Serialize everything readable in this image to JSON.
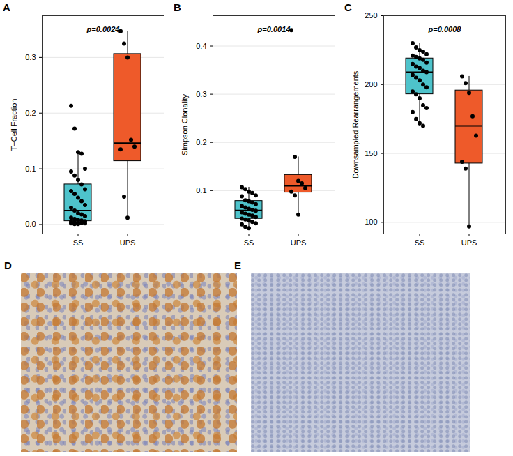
{
  "chart_data": [
    {
      "type": "box",
      "panel_label": "A",
      "annotation": "p=0.0024",
      "categories": [
        "SS",
        "UPS"
      ],
      "colors": [
        "#4ec3cb",
        "#ee5a2a"
      ],
      "ylabel": "T−Cell Fraction",
      "values": [
        [
          0.213,
          0.172,
          0.13,
          0.127,
          0.1,
          0.095,
          0.088,
          0.08,
          0.072,
          0.063,
          0.06,
          0.055,
          0.048,
          0.042,
          0.035,
          0.03,
          0.025,
          0.02,
          0.018,
          0.015,
          0.012,
          0.01,
          0.008,
          0.007,
          0.006,
          0.005,
          0.004,
          0.003,
          0.003,
          0.002,
          0.002,
          0.001,
          0.001
        ],
        [
          0.347,
          0.325,
          0.3,
          0.152,
          0.14,
          0.135,
          0.05,
          0.012
        ]
      ],
      "ylim": [
        -0.017,
        0.375
      ],
      "yticks": [
        {
          "value": 0,
          "label": "0.0"
        },
        0.1,
        0.2,
        0.3
      ],
      "grid": true
    },
    {
      "type": "box",
      "panel_label": "B",
      "annotation": "p=0.0014",
      "categories": [
        "SS",
        "UPS"
      ],
      "colors": [
        "#4ec3cb",
        "#ee5a2a"
      ],
      "ylabel": "Simpson Clonality",
      "values": [
        [
          0.107,
          0.103,
          0.098,
          0.095,
          0.09,
          0.088,
          0.08,
          0.078,
          0.075,
          0.072,
          0.068,
          0.065,
          0.062,
          0.06,
          0.058,
          0.055,
          0.052,
          0.05,
          0.048,
          0.045,
          0.042,
          0.04,
          0.038,
          0.035,
          0.032,
          0.03,
          0.025,
          0.022
        ],
        [
          0.433,
          0.17,
          0.12,
          0.115,
          0.105,
          0.098,
          0.09,
          0.05
        ]
      ],
      "ylim": [
        0.01,
        0.463
      ],
      "yticks": [
        0.1,
        0.2,
        0.3,
        0.4
      ],
      "grid": true
    },
    {
      "type": "box",
      "panel_label": "C",
      "annotation": "p=0.0008",
      "categories": [
        "SS",
        "UPS"
      ],
      "colors": [
        "#4ec3cb",
        "#ee5a2a"
      ],
      "ylabel": "Downsampled Rearrangements",
      "values": [
        [
          230,
          227,
          225,
          224,
          222,
          221,
          220,
          219,
          218,
          216,
          215,
          213,
          212,
          210,
          209,
          207,
          205,
          203,
          200,
          198,
          195,
          193,
          190,
          185,
          183,
          180,
          175,
          172,
          170
        ],
        [
          206,
          201,
          194,
          177,
          163,
          144,
          139,
          97
        ]
      ],
      "ylim": [
        91.6,
        250
      ],
      "yticks": [
        100,
        150,
        200,
        250
      ],
      "grid": true
    }
  ],
  "images": [
    {
      "panel_label": "D"
    },
    {
      "panel_label": "E"
    }
  ]
}
